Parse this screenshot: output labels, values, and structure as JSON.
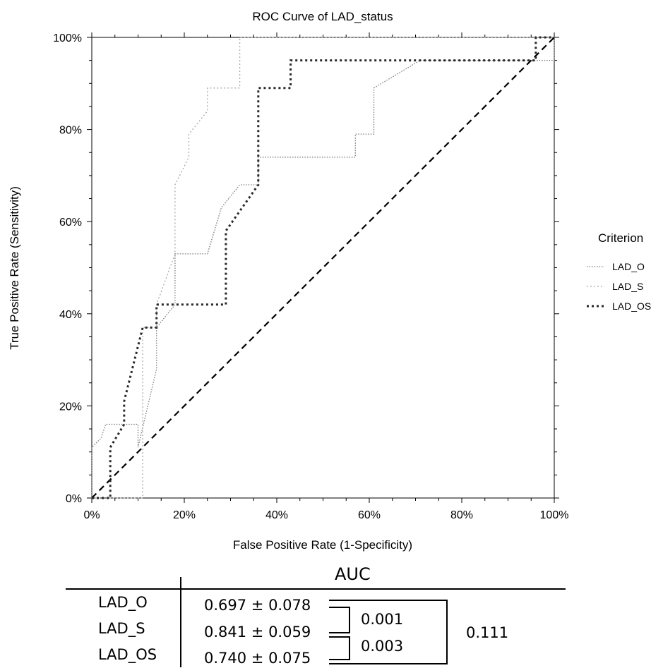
{
  "chart_data": {
    "type": "line",
    "title": "ROC Curve of LAD_status",
    "xlabel": "False Positive Rate (1-Specificity)",
    "ylabel": "True Positive Rate (Sensitivity)",
    "xlim": [
      0,
      100
    ],
    "ylim": [
      0,
      100
    ],
    "x_ticks": [
      "0%",
      "20%",
      "40%",
      "60%",
      "80%",
      "100%"
    ],
    "y_ticks": [
      "0%",
      "20%",
      "40%",
      "60%",
      "80%",
      "100%"
    ],
    "grid": false,
    "legend_title": "Criterion",
    "legend_position": "right",
    "diagonal_reference": true,
    "series": [
      {
        "name": "LAD_O",
        "color": "#7a7a7a",
        "style": "dotted-thin",
        "points": [
          [
            0,
            0
          ],
          [
            0,
            11
          ],
          [
            2,
            13
          ],
          [
            3,
            16
          ],
          [
            7,
            16
          ],
          [
            10,
            16
          ],
          [
            10,
            11
          ],
          [
            14,
            28
          ],
          [
            14,
            37
          ],
          [
            18,
            42
          ],
          [
            18,
            53
          ],
          [
            25,
            53
          ],
          [
            28,
            63
          ],
          [
            32,
            68
          ],
          [
            36,
            68
          ],
          [
            36,
            74
          ],
          [
            57,
            74
          ],
          [
            57,
            79
          ],
          [
            61,
            79
          ],
          [
            61,
            89
          ],
          [
            71,
            95
          ],
          [
            100,
            95
          ],
          [
            100,
            100
          ]
        ]
      },
      {
        "name": "LAD_S",
        "color": "#a8a8a8",
        "style": "dotted-light",
        "points": [
          [
            0,
            0
          ],
          [
            11,
            0
          ],
          [
            11,
            11
          ],
          [
            11,
            37
          ],
          [
            14,
            37
          ],
          [
            14,
            42
          ],
          [
            18,
            53
          ],
          [
            18,
            68
          ],
          [
            21,
            74
          ],
          [
            21,
            79
          ],
          [
            25,
            84
          ],
          [
            25,
            89
          ],
          [
            32,
            89
          ],
          [
            32,
            100
          ],
          [
            100,
            100
          ]
        ]
      },
      {
        "name": "LAD_OS",
        "color": "#2a2a2a",
        "style": "dotted-thick",
        "points": [
          [
            0,
            0
          ],
          [
            4,
            0
          ],
          [
            4,
            11
          ],
          [
            7,
            16
          ],
          [
            7,
            21
          ],
          [
            11,
            37
          ],
          [
            14,
            37
          ],
          [
            14,
            42
          ],
          [
            29,
            42
          ],
          [
            29,
            58
          ],
          [
            36,
            68
          ],
          [
            36,
            89
          ],
          [
            43,
            89
          ],
          [
            43,
            95
          ],
          [
            96,
            95
          ],
          [
            96,
            100
          ],
          [
            100,
            100
          ]
        ]
      }
    ]
  },
  "auc_table": {
    "header": "AUC",
    "rows": [
      {
        "label": "LAD_O",
        "auc": "0.697 ± 0.078"
      },
      {
        "label": "LAD_S",
        "auc": "0.841 ± 0.059"
      },
      {
        "label": "LAD_OS",
        "auc": "0.740 ± 0.075"
      }
    ],
    "p_values": {
      "o_vs_s": "0.001",
      "s_vs_os": "0.003",
      "o_vs_os": "0.111"
    }
  }
}
